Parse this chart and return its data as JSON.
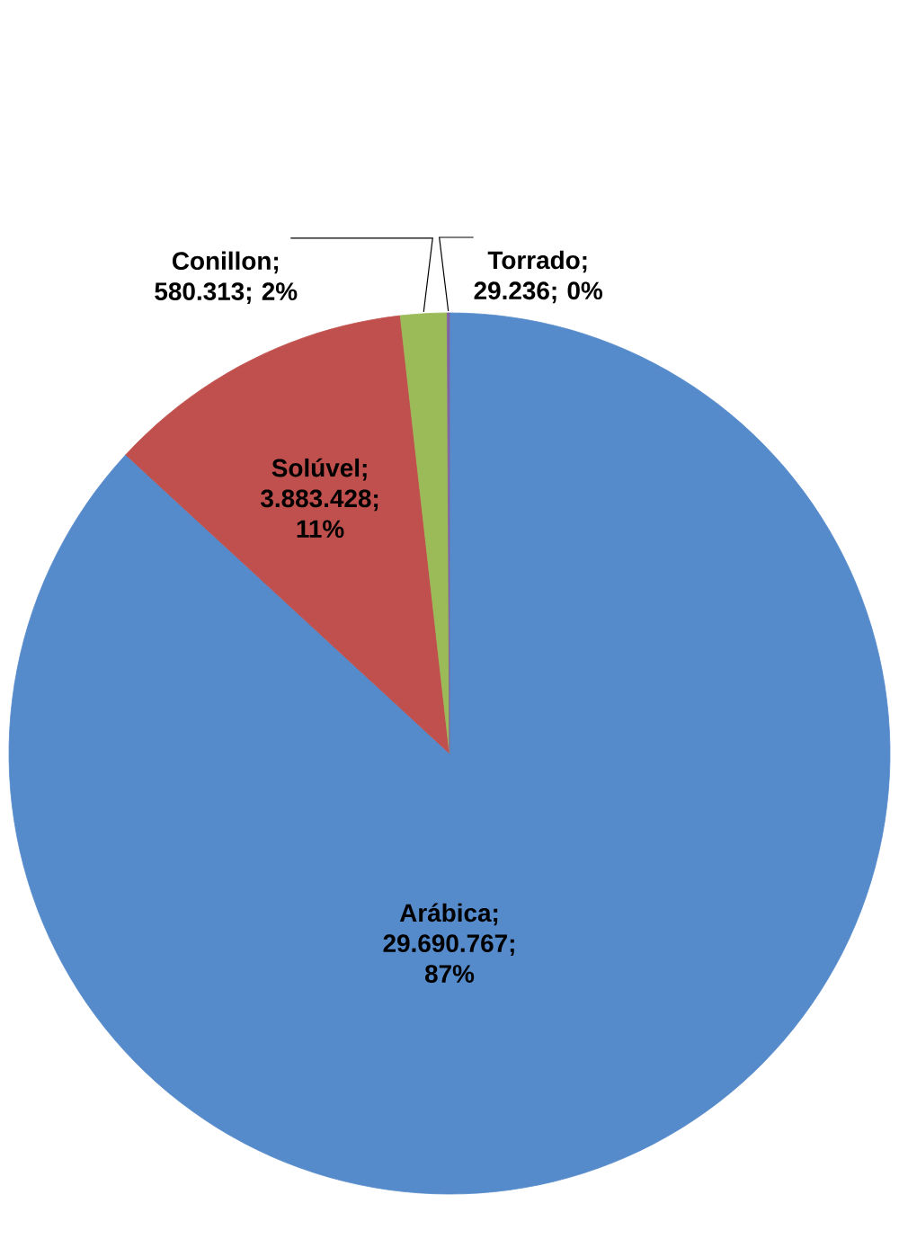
{
  "chart_data": {
    "type": "pie",
    "categories": [
      "Arábica",
      "Solúvel",
      "Conillon",
      "Torrado"
    ],
    "values": [
      29690767,
      3883428,
      580313,
      29236
    ],
    "colors": [
      "#558ACB",
      "#C0504D",
      "#9BBB59",
      "#8064A2"
    ],
    "value_labels": [
      "; 29.690.767; 87%",
      "; 3.883.428; 11%",
      "; 580.313; 2%",
      "; 29.236; 0%"
    ]
  }
}
